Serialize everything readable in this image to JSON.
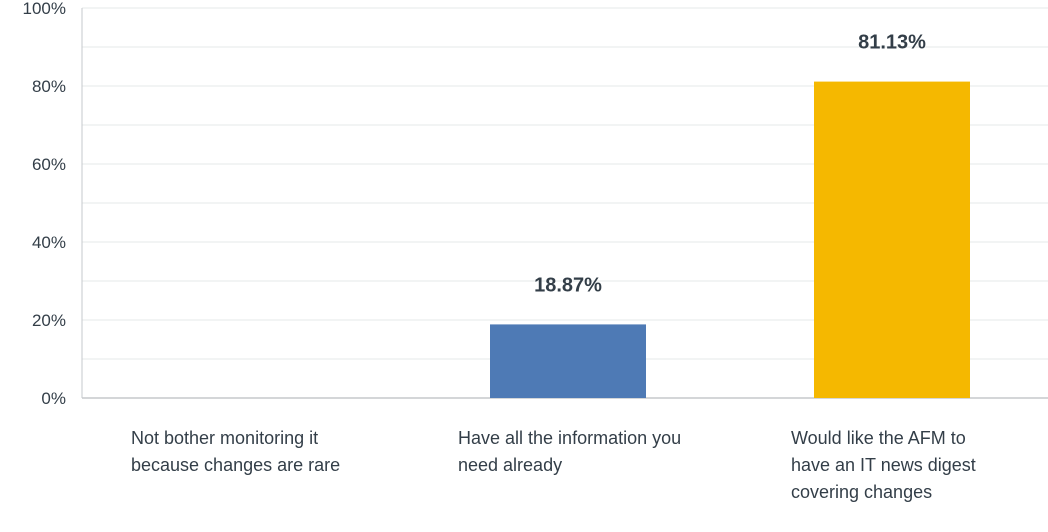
{
  "chart_data": {
    "type": "bar",
    "categories": [
      "Not bother monitoring it because changes are rare",
      "Have all the information you need already",
      "Would like the AFM to have an IT news digest covering changes"
    ],
    "values": [
      0,
      18.87,
      81.13
    ],
    "data_labels": [
      "",
      "18.87%",
      "81.13%"
    ],
    "colors": [
      "#4e7ab5",
      "#4e7ab5",
      "#f5b800"
    ],
    "yticks": [
      "0%",
      "20%",
      "40%",
      "60%",
      "80%",
      "100%"
    ],
    "ylim": [
      0,
      100
    ],
    "grid": true
  }
}
